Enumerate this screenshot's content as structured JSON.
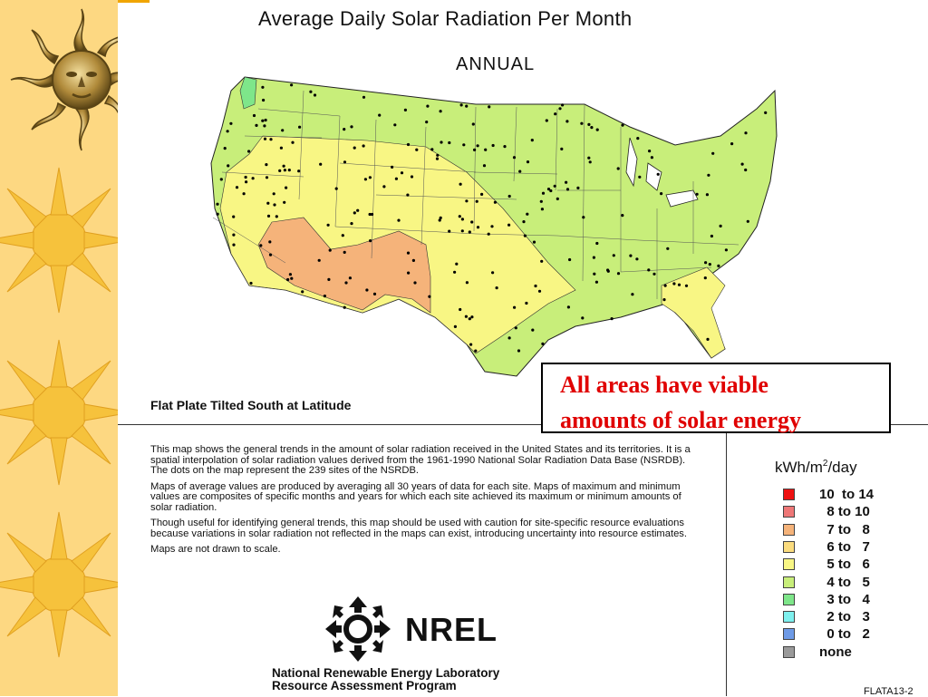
{
  "slide": {
    "title": "Average Daily Solar Radiation Per Month",
    "subtitle": "ANNUAL",
    "caption": "Flat Plate Tilted South at Latitude",
    "callout": {
      "line1": "All areas have viable",
      "line2": "amounts of solar energy"
    },
    "description": [
      "This map shows the general trends in the amount of solar radiation received in the United States and its territories.  It is a spatial interpolation of solar radiation values derived from the 1961-1990 National Solar Radiation Data Base (NSRDB).  The dots on the map represent the 239 sites of the NSRDB.",
      "Maps of average values are produced by averaging all 30 years of data for each site. Maps of maximum and minimum values are composites of specific months and years for which each site achieved its maximum or minimum amounts of solar radiation.",
      "Though useful for identifying general trends, this map should be used with caution for site-specific resource evaluations because variations in solar radiation not reflected in the maps can exist, introducing uncertainty into resource estimates.",
      "Maps are not drawn to scale."
    ],
    "legend": {
      "unit_prefix": "kWh/m",
      "unit_power": "2",
      "unit_suffix": "/day",
      "items": [
        {
          "label": "10  to 14",
          "color": "#ee1111"
        },
        {
          "label": "  8 to 10",
          "color": "#ee7777"
        },
        {
          "label": "  7 to   8",
          "color": "#f5b37a"
        },
        {
          "label": "  6 to   7",
          "color": "#fbdc7e"
        },
        {
          "label": "  5 to   6",
          "color": "#f8f684"
        },
        {
          "label": "  4 to   5",
          "color": "#c8ee7a"
        },
        {
          "label": "  3 to   4",
          "color": "#7ee68a"
        },
        {
          "label": "  2 to   3",
          "color": "#7ef0ee"
        },
        {
          "label": "  0 to   2",
          "color": "#6e9ae6"
        },
        {
          "label": "none",
          "color": "#9a9a9a"
        }
      ]
    },
    "logo_text": "NREL",
    "organization": {
      "line1": "National Renewable Energy Laboratory",
      "line2": "Resource Assessment Program"
    },
    "footer_code": "FLATA13-2",
    "icons": {
      "sidebar": [
        "sun-face-icon",
        "sun-icon"
      ],
      "logo": "nrel-arrows-icon"
    }
  }
}
